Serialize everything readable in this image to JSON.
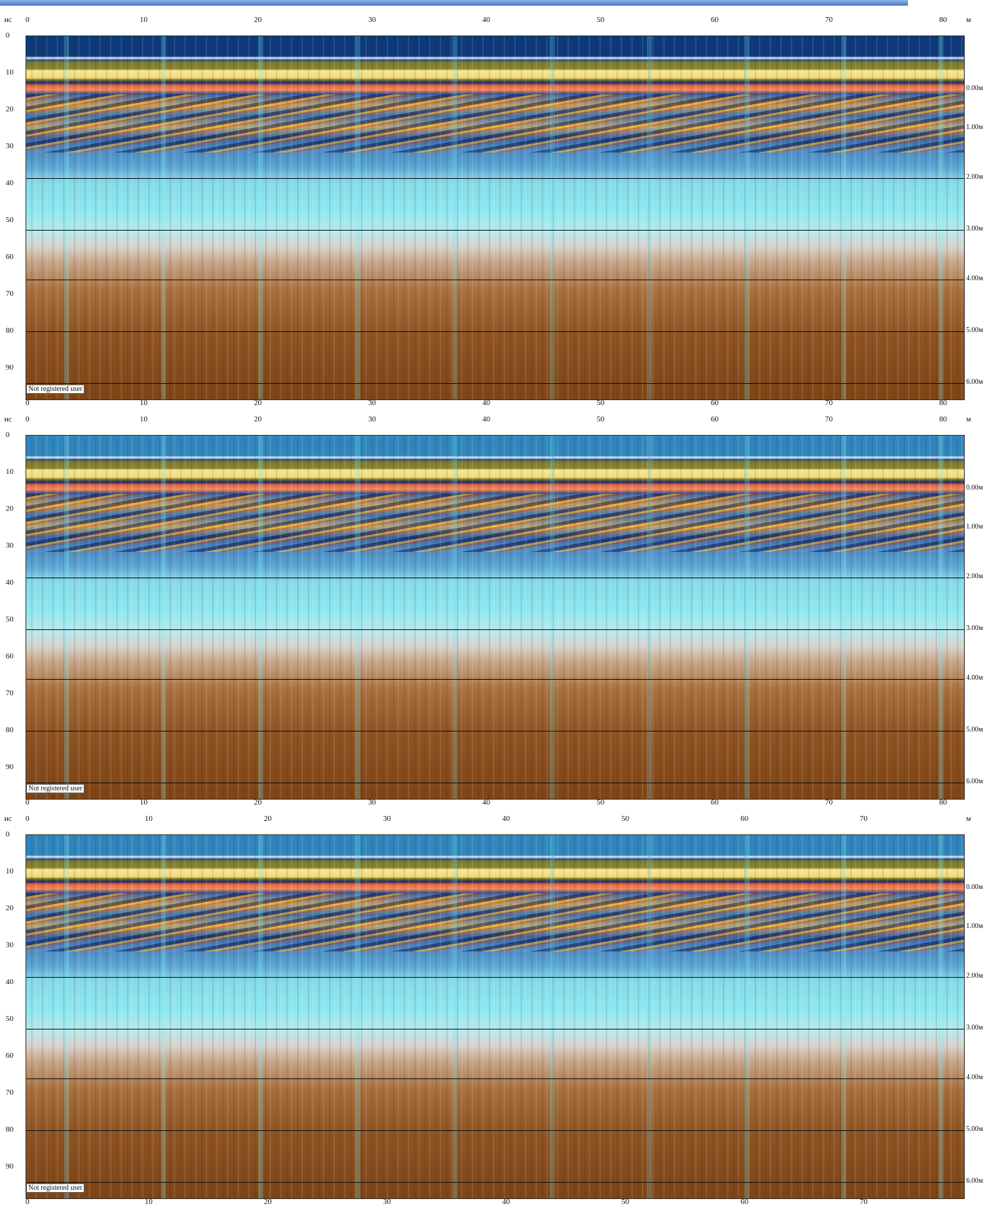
{
  "panels": [
    {
      "time_unit": "нс",
      "distance_unit": "м",
      "time_ticks": [
        0,
        10,
        20,
        30,
        40,
        50,
        60,
        70,
        80,
        90
      ],
      "distance_ticks": [
        0,
        10,
        20,
        30,
        40,
        50,
        60,
        70,
        80
      ],
      "depth_labels": [
        "0.00м",
        "1.00м",
        "2.00м",
        "3.00м",
        "4.00м",
        "5.00м",
        "6.00м"
      ],
      "watermark": "Not registered user"
    },
    {
      "time_unit": "нс",
      "distance_unit": "м",
      "time_ticks": [
        0,
        10,
        20,
        30,
        40,
        50,
        60,
        70,
        80,
        90
      ],
      "distance_ticks": [
        0,
        10,
        20,
        30,
        40,
        50,
        60,
        70,
        80
      ],
      "depth_labels": [
        "0.00м",
        "1.00м",
        "2.00м",
        "3.00м",
        "4.00м",
        "5.00м",
        "6.00м"
      ],
      "watermark": "Not registered user"
    },
    {
      "time_unit": "нс",
      "distance_unit": "м",
      "time_ticks": [
        0,
        10,
        20,
        30,
        40,
        50,
        60,
        70,
        80,
        90
      ],
      "distance_ticks": [
        0,
        10,
        20,
        30,
        40,
        50,
        60,
        70
      ],
      "depth_labels": [
        "0.00м",
        "1.00м",
        "2.00м",
        "3.00м",
        "4.00м",
        "5.00м",
        "6.00м"
      ],
      "watermark": "Not registered user"
    }
  ]
}
